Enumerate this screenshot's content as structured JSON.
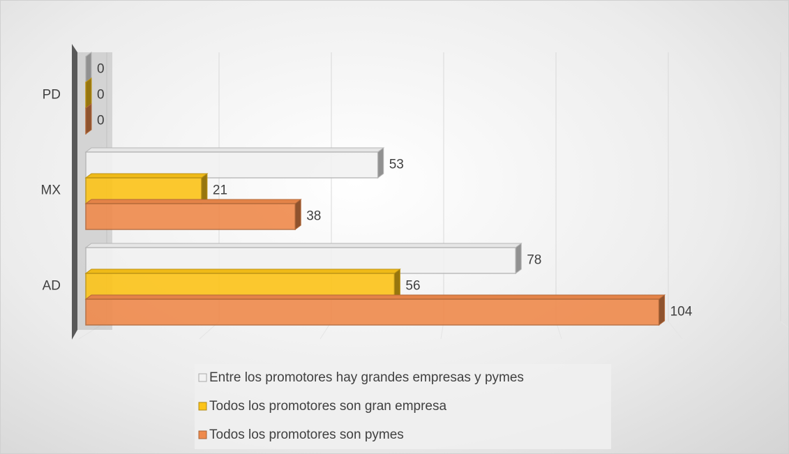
{
  "chart_data": {
    "type": "bar",
    "orientation": "horizontal",
    "categories": [
      "PD",
      "MX",
      "AD"
    ],
    "series": [
      {
        "name": "Entre los promotores hay grandes empresas y pymes",
        "color": "#f2f2f2",
        "values": [
          0,
          53,
          78
        ]
      },
      {
        "name": "Todos los promotores son gran empresa",
        "color": "#fcc419",
        "values": [
          0,
          21,
          56
        ]
      },
      {
        "name": "Todos los promotores son pymes",
        "color": "#ef8a4c",
        "values": [
          0,
          38,
          104
        ]
      }
    ],
    "xlim": [
      0,
      120
    ],
    "xticks": [
      0,
      20,
      40,
      60,
      80,
      100,
      120
    ],
    "grid": true,
    "legend": "bottom"
  }
}
